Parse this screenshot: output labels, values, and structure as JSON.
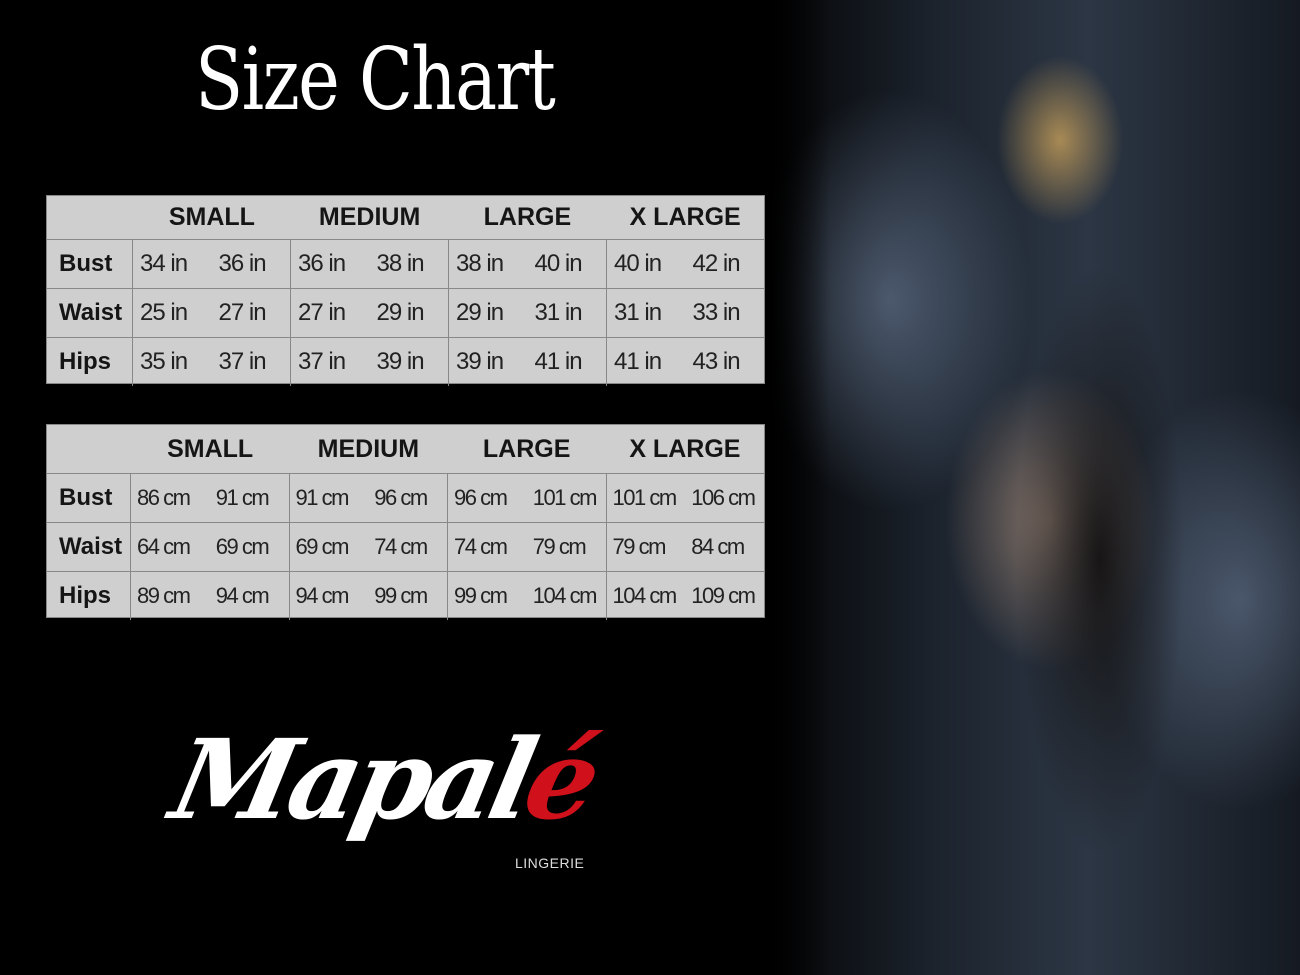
{
  "title": "Size Chart",
  "sizes": [
    "SMALL",
    "MEDIUM",
    "LARGE",
    "X LARGE"
  ],
  "inches_table": {
    "rows": [
      {
        "label": "Bust",
        "values": [
          "34 in",
          "36 in",
          "36 in",
          "38 in",
          "38 in",
          "40 in",
          "40 in",
          "42 in"
        ]
      },
      {
        "label": "Waist",
        "values": [
          "25 in",
          "27 in",
          "27 in",
          "29 in",
          "29 in",
          "31 in",
          "31 in",
          "33 in"
        ]
      },
      {
        "label": "Hips",
        "values": [
          "35 in",
          "37 in",
          "37 in",
          "39 in",
          "39 in",
          "41 in",
          "41 in",
          "43 in"
        ]
      }
    ]
  },
  "cm_table": {
    "rows": [
      {
        "label": "Bust",
        "values": [
          "86 cm",
          "91 cm",
          "91 cm",
          "96 cm",
          "96 cm",
          "101 cm",
          "101 cm",
          "106 cm"
        ]
      },
      {
        "label": "Waist",
        "values": [
          "64 cm",
          "69 cm",
          "69 cm",
          "74 cm",
          "74 cm",
          "79  cm",
          "79 cm",
          "84 cm"
        ]
      },
      {
        "label": "Hips",
        "values": [
          "89 cm",
          "94 cm",
          "94 cm",
          "99 cm",
          "99 cm",
          "104 cm",
          "104 cm",
          "109 cm"
        ]
      }
    ]
  },
  "logo": {
    "text_main": "Mapal",
    "text_accent": "é",
    "subtitle": "LINGERIE",
    "accent_color": "#d0101a"
  }
}
